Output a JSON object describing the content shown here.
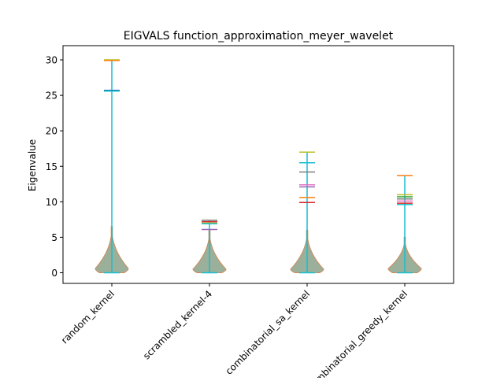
{
  "chart_data": {
    "type": "violin",
    "title": "EIGVALS function_approximation_meyer_wavelet",
    "xlabel": "",
    "ylabel": "Eigenvalue",
    "ylim": [
      -1.5,
      32.0
    ],
    "yticks": [
      0,
      5,
      10,
      15,
      20,
      25,
      30
    ],
    "grid": false,
    "categories": [
      "random_kernel",
      "scrambled_kernel-4",
      "combinatorial_sa_kernel",
      "combinatorial_greedy_kernel"
    ],
    "violins": [
      {
        "category": "random_kernel",
        "max_markers": [
          {
            "value": 30.0,
            "color": "#bcbd22"
          },
          {
            "value": 29.9,
            "color": "#ff7f0e"
          },
          {
            "value": 25.7,
            "color": "#1f77b4"
          },
          {
            "value": 25.6,
            "color": "#17becf"
          }
        ],
        "max": 30.0,
        "min": 0.0,
        "peak_value": 0.6,
        "shape_top": 6.5
      },
      {
        "category": "scrambled_kernel-4",
        "max_markers": [
          {
            "value": 7.4,
            "color": "#7f7f7f"
          },
          {
            "value": 7.2,
            "color": "#d62728"
          },
          {
            "value": 7.0,
            "color": "#bcbd22"
          },
          {
            "value": 6.9,
            "color": "#17becf"
          },
          {
            "value": 6.1,
            "color": "#9467bd"
          }
        ],
        "max": 7.4,
        "min": 0.0,
        "peak_value": 0.5,
        "shape_top": 6.0
      },
      {
        "category": "combinatorial_sa_kernel",
        "max_markers": [
          {
            "value": 17.0,
            "color": "#bcbd22"
          },
          {
            "value": 15.5,
            "color": "#17becf"
          },
          {
            "value": 14.2,
            "color": "#7f7f7f"
          },
          {
            "value": 12.4,
            "color": "#e377c2"
          },
          {
            "value": 12.1,
            "color": "#9467bd"
          },
          {
            "value": 10.6,
            "color": "#ff7f0e"
          },
          {
            "value": 9.9,
            "color": "#d62728"
          }
        ],
        "max": 17.0,
        "min": 0.0,
        "peak_value": 0.5,
        "shape_top": 6.0
      },
      {
        "category": "combinatorial_greedy_kernel",
        "max_markers": [
          {
            "value": 13.7,
            "color": "#ff7f0e"
          },
          {
            "value": 11.0,
            "color": "#bcbd22"
          },
          {
            "value": 10.7,
            "color": "#2ca02c"
          },
          {
            "value": 10.4,
            "color": "#7f7f7f"
          },
          {
            "value": 10.1,
            "color": "#e377c2"
          },
          {
            "value": 9.8,
            "color": "#d62728"
          },
          {
            "value": 9.6,
            "color": "#17becf"
          }
        ],
        "max": 13.7,
        "min": 0.0,
        "peak_value": 0.6,
        "shape_top": 5.0
      }
    ],
    "colors": {
      "body_fill": "#8aa28a",
      "body_edge": "#d08a5a",
      "stem": "#17becf"
    }
  }
}
